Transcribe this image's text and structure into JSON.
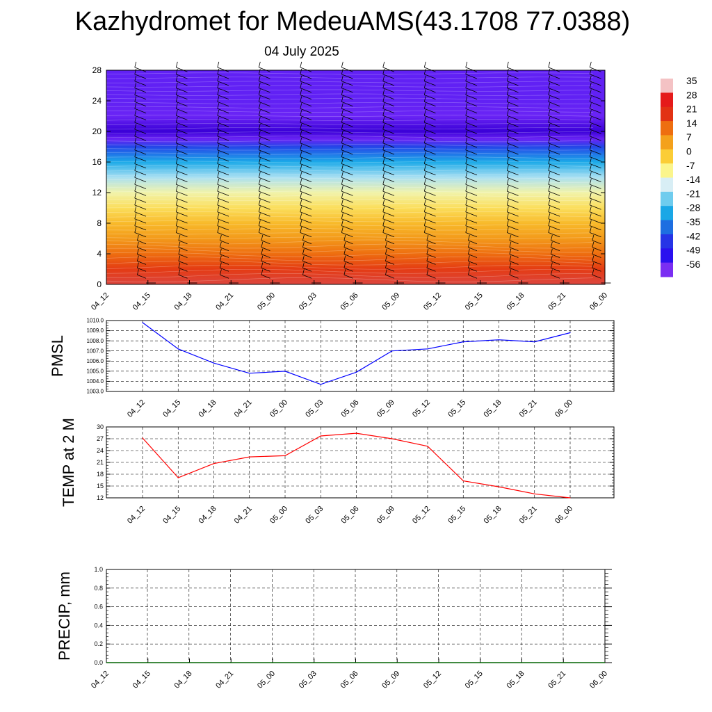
{
  "header": {
    "title": "Kazhydromet for MedeuAMS(43.1708 77.0388)",
    "date": "04 July 2025"
  },
  "chart_data": [
    {
      "type": "heatmap",
      "x": [
        "04_12",
        "04_15",
        "04_18",
        "04_21",
        "05_00",
        "05_03",
        "05_06",
        "05_09",
        "05_12",
        "05_15",
        "05_18",
        "05_21",
        "06_00"
      ],
      "ylim": [
        0,
        28
      ],
      "yticks": [
        0,
        4,
        8,
        12,
        16,
        20,
        24,
        28
      ],
      "colorbar": {
        "labels": [
          "35",
          "28",
          "21",
          "14",
          "7",
          "0",
          "-7",
          "-14",
          "-21",
          "-28",
          "-35",
          "-42",
          "-49",
          "-56"
        ],
        "colors": [
          "#f4c2c4",
          "#e51a1a",
          "#e23214",
          "#ee6e10",
          "#f4a11c",
          "#fbcd36",
          "#fbf58c",
          "#d8eef5",
          "#6fccee",
          "#1aa7e6",
          "#1e6ee1",
          "#2634e6",
          "#2a10ef",
          "#7a2ef2"
        ]
      },
      "temperature_profile": [
        {
          "z": 0,
          "t": 30
        },
        {
          "z": 2,
          "t": 20
        },
        {
          "z": 4,
          "t": 14
        },
        {
          "z": 6,
          "t": 8
        },
        {
          "z": 8,
          "t": 3
        },
        {
          "z": 10,
          "t": -3
        },
        {
          "z": 12,
          "t": -9
        },
        {
          "z": 14,
          "t": -17
        },
        {
          "z": 16,
          "t": -28
        },
        {
          "z": 18,
          "t": -42
        },
        {
          "z": 19,
          "t": -56
        },
        {
          "z": 20,
          "t": -60
        },
        {
          "z": 22,
          "t": -56
        },
        {
          "z": 24,
          "t": -55
        },
        {
          "z": 28,
          "t": -55
        }
      ]
    },
    {
      "type": "line",
      "ylabel": "PMSL",
      "x": [
        "04_12",
        "04_15",
        "04_18",
        "04_21",
        "05_00",
        "05_03",
        "05_06",
        "05_09",
        "05_12",
        "05_15",
        "05_18",
        "05_21",
        "06_00"
      ],
      "ylim": [
        1003,
        1010
      ],
      "yticks": [
        "1003.0",
        "1004.0",
        "1005.0",
        "1006.0",
        "1007.0",
        "1008.0",
        "1009.0",
        "1010.0"
      ],
      "color": "#0000ff",
      "values": [
        1009.8,
        1007.2,
        1005.8,
        1004.8,
        1005.0,
        1003.7,
        1004.9,
        1007.0,
        1007.2,
        1007.9,
        1008.1,
        1007.9,
        1008.8
      ]
    },
    {
      "type": "line",
      "ylabel": "TEMP at 2 M",
      "x": [
        "04_12",
        "04_15",
        "04_18",
        "04_21",
        "05_00",
        "05_03",
        "05_06",
        "05_09",
        "05_12",
        "05_15",
        "05_18",
        "05_21",
        "06_00"
      ],
      "ylim": [
        12,
        30
      ],
      "yticks": [
        "12",
        "15",
        "18",
        "21",
        "24",
        "27",
        "30"
      ],
      "color": "#ff0000",
      "values": [
        27.2,
        17.1,
        20.7,
        22.4,
        22.7,
        27.7,
        28.4,
        27.0,
        25.1,
        16.3,
        14.8,
        13.0,
        12.0
      ]
    },
    {
      "type": "line",
      "ylabel": "PRECIP, mm",
      "x": [
        "04_12",
        "04_15",
        "04_18",
        "04_21",
        "05_00",
        "05_03",
        "05_06",
        "05_09",
        "05_12",
        "05_15",
        "05_18",
        "05_21",
        "06_00"
      ],
      "ylim": [
        0,
        1
      ],
      "yticks": [
        "0.0",
        "0.2",
        "0.4",
        "0.6",
        "0.8",
        "1.0"
      ],
      "color": "#006400",
      "values": [
        0,
        0,
        0,
        0,
        0,
        0,
        0,
        0,
        0,
        0,
        0,
        0,
        0
      ]
    }
  ]
}
